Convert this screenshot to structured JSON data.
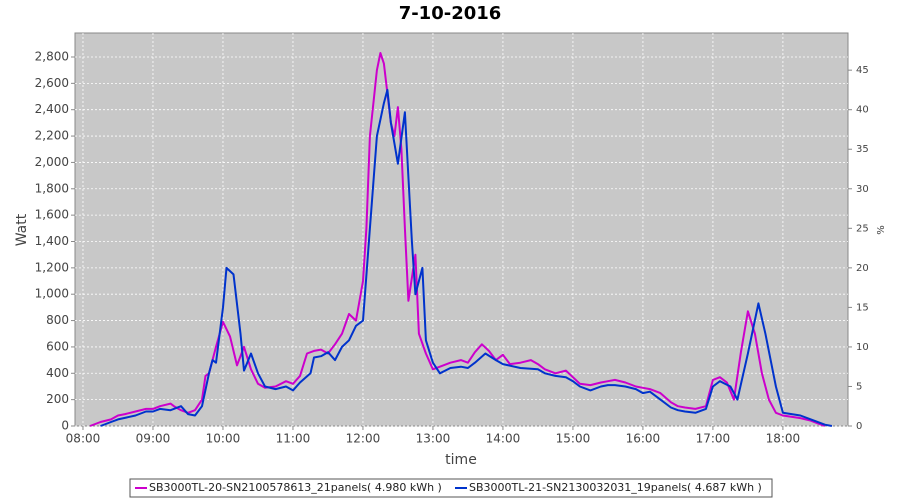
{
  "chart_data": {
    "type": "line",
    "title": "7-10-2016",
    "xlabel": "time",
    "ylabel": "Watt",
    "y2label": "%",
    "xlim": [
      7.886,
      18.93
    ],
    "xticks": [
      {
        "value": 8,
        "label": "08:00"
      },
      {
        "value": 9,
        "label": "09:00"
      },
      {
        "value": 10,
        "label": "10:00"
      },
      {
        "value": 11,
        "label": "11:00"
      },
      {
        "value": 12,
        "label": "12:00"
      },
      {
        "value": 13,
        "label": "13:00"
      },
      {
        "value": 14,
        "label": "14:00"
      },
      {
        "value": 15,
        "label": "15:00"
      },
      {
        "value": 16,
        "label": "16:00"
      },
      {
        "value": 17,
        "label": "17:00"
      },
      {
        "value": 18,
        "label": "18:00"
      }
    ],
    "ylim": [
      0,
      2982
    ],
    "yticks": [
      0,
      200,
      400,
      600,
      800,
      {
        "value": 1000,
        "label": "1,000"
      },
      {
        "value": 1200,
        "label": "1,200"
      },
      {
        "value": 1400,
        "label": "1,400"
      },
      {
        "value": 1600,
        "label": "1,600"
      },
      {
        "value": 1800,
        "label": "1,800"
      },
      {
        "value": 2000,
        "label": "2,000"
      },
      {
        "value": 2200,
        "label": "2,200"
      },
      {
        "value": 2400,
        "label": "2,400"
      },
      {
        "value": 2600,
        "label": "2,600"
      },
      {
        "value": 2800,
        "label": "2,800"
      }
    ],
    "y2lim": [
      0,
      49.7
    ],
    "y2ticks": [
      0,
      5,
      10,
      15,
      20,
      25,
      30,
      35,
      40,
      45
    ],
    "grid": true,
    "legend": "bottom",
    "series": [
      {
        "name": "SB3000TL-20-SN2100578613_21panels( 4.980 kWh )",
        "color": "#cc00cc",
        "x": [
          8.1,
          8.25,
          8.4,
          8.5,
          8.6,
          8.75,
          8.9,
          9.0,
          9.1,
          9.25,
          9.3,
          9.4,
          9.5,
          9.6,
          9.7,
          9.75,
          9.8,
          9.9,
          10.0,
          10.1,
          10.2,
          10.3,
          10.4,
          10.5,
          10.6,
          10.75,
          10.9,
          11.0,
          11.1,
          11.2,
          11.3,
          11.4,
          11.5,
          11.6,
          11.7,
          11.8,
          11.9,
          12.0,
          12.05,
          12.1,
          12.2,
          12.25,
          12.3,
          12.4,
          12.45,
          12.5,
          12.55,
          12.6,
          12.65,
          12.75,
          12.8,
          12.9,
          13.0,
          13.1,
          13.25,
          13.4,
          13.5,
          13.6,
          13.7,
          13.8,
          13.9,
          14.0,
          14.1,
          14.25,
          14.4,
          14.5,
          14.6,
          14.75,
          14.9,
          15.0,
          15.1,
          15.25,
          15.4,
          15.5,
          15.6,
          15.75,
          15.9,
          16.0,
          16.1,
          16.25,
          16.4,
          16.5,
          16.6,
          16.75,
          16.9,
          17.0,
          17.1,
          17.2,
          17.3,
          17.4,
          17.5,
          17.6,
          17.7,
          17.8,
          17.9,
          18.0,
          18.25,
          18.4,
          18.5,
          18.6
        ],
        "values": [
          0,
          30,
          50,
          80,
          90,
          110,
          130,
          130,
          150,
          170,
          150,
          120,
          100,
          120,
          200,
          380,
          400,
          600,
          790,
          680,
          460,
          600,
          430,
          320,
          290,
          300,
          340,
          320,
          380,
          550,
          570,
          580,
          550,
          620,
          700,
          850,
          800,
          1100,
          1500,
          2200,
          2700,
          2830,
          2750,
          2300,
          2200,
          2420,
          2100,
          1500,
          950,
          1300,
          700,
          550,
          430,
          450,
          480,
          500,
          480,
          560,
          620,
          570,
          500,
          540,
          470,
          480,
          500,
          470,
          430,
          400,
          420,
          370,
          320,
          310,
          330,
          340,
          350,
          330,
          300,
          290,
          280,
          250,
          180,
          150,
          140,
          130,
          150,
          350,
          370,
          330,
          200,
          560,
          870,
          700,
          400,
          200,
          100,
          80,
          60,
          40,
          20,
          0
        ]
      },
      {
        "name": "SB3000TL-21-SN2130032031_19panels( 4.687 kWh )",
        "color": "#0033cc",
        "x": [
          8.25,
          8.4,
          8.5,
          8.75,
          8.9,
          9.0,
          9.1,
          9.25,
          9.4,
          9.5,
          9.6,
          9.7,
          9.8,
          9.85,
          9.9,
          10.0,
          10.05,
          10.15,
          10.25,
          10.3,
          10.4,
          10.5,
          10.6,
          10.75,
          10.9,
          11.0,
          11.1,
          11.25,
          11.3,
          11.4,
          11.5,
          11.6,
          11.7,
          11.8,
          11.9,
          12.0,
          12.1,
          12.2,
          12.3,
          12.35,
          12.4,
          12.5,
          12.6,
          12.7,
          12.75,
          12.85,
          12.9,
          13.0,
          13.1,
          13.25,
          13.4,
          13.5,
          13.6,
          13.75,
          13.9,
          14.0,
          14.25,
          14.5,
          14.6,
          14.75,
          14.9,
          15.0,
          15.1,
          15.25,
          15.4,
          15.5,
          15.6,
          15.75,
          15.9,
          16.0,
          16.1,
          16.25,
          16.4,
          16.5,
          16.6,
          16.75,
          16.9,
          17.0,
          17.1,
          17.25,
          17.35,
          17.5,
          17.65,
          17.75,
          17.9,
          18.0,
          18.25,
          18.4,
          18.6,
          18.7
        ],
        "values": [
          0,
          30,
          50,
          80,
          110,
          110,
          130,
          120,
          150,
          90,
          80,
          150,
          400,
          500,
          480,
          900,
          1200,
          1150,
          700,
          420,
          550,
          400,
          300,
          280,
          300,
          270,
          330,
          400,
          520,
          530,
          560,
          500,
          600,
          650,
          760,
          800,
          1500,
          2200,
          2450,
          2550,
          2300,
          1990,
          2380,
          1400,
          1000,
          1200,
          650,
          480,
          400,
          440,
          450,
          440,
          480,
          550,
          500,
          470,
          440,
          430,
          400,
          380,
          370,
          340,
          300,
          270,
          300,
          310,
          310,
          300,
          280,
          250,
          260,
          200,
          140,
          120,
          110,
          100,
          130,
          300,
          340,
          300,
          200,
          550,
          930,
          700,
          300,
          100,
          80,
          50,
          10,
          0
        ]
      }
    ]
  }
}
